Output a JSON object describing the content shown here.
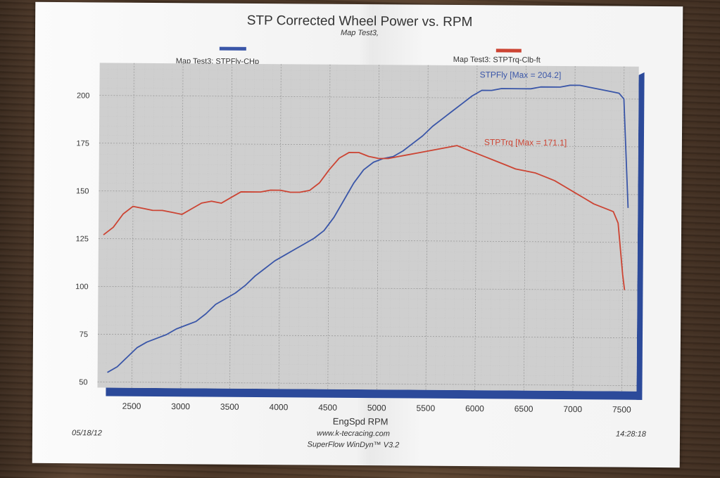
{
  "chart_data": {
    "type": "line",
    "title": "STP Corrected Wheel Power vs. RPM",
    "subtitle": "Map Test3,",
    "xlabel": "EngSpd RPM",
    "ylabel": "",
    "xlim": [
      2150,
      7650
    ],
    "ylim": [
      47,
      217
    ],
    "x_ticks": [
      2500,
      3000,
      3500,
      4000,
      4500,
      5000,
      5500,
      6000,
      6500,
      7000,
      7500
    ],
    "y_ticks": [
      50,
      75,
      100,
      125,
      150,
      175,
      200
    ],
    "grid": true,
    "legend_placement": "top",
    "series": [
      {
        "name": "Map Test3: STPFly-CHp",
        "color": "#3a56a8",
        "annotation": "STPFly [Max = 204.2]",
        "x": [
          2250,
          2350,
          2450,
          2550,
          2650,
          2750,
          2850,
          2950,
          3050,
          3150,
          3250,
          3350,
          3450,
          3550,
          3650,
          3750,
          3850,
          3950,
          4050,
          4150,
          4250,
          4350,
          4450,
          4550,
          4650,
          4750,
          4850,
          4950,
          5050,
          5150,
          5250,
          5350,
          5450,
          5550,
          5650,
          5750,
          5850,
          5950,
          6050,
          6150,
          6250,
          6350,
          6450,
          6550,
          6650,
          6750,
          6850,
          6950,
          7050,
          7150,
          7250,
          7350,
          7450,
          7500,
          7550
        ],
        "y": [
          55,
          58,
          63,
          68,
          71,
          73,
          75,
          78,
          80,
          82,
          86,
          91,
          94,
          97,
          101,
          106,
          110,
          114,
          117,
          120,
          123,
          126,
          130,
          137,
          146,
          155,
          162,
          166,
          168,
          169,
          172,
          176,
          180,
          185,
          189,
          193,
          197,
          201,
          204,
          204,
          205,
          205,
          205,
          205,
          206,
          206,
          206,
          207,
          207,
          206,
          205,
          204,
          203,
          200,
          143
        ]
      },
      {
        "name": "Map Test3: STPTrq-Clb-ft",
        "color": "#cc4433",
        "annotation": "STPTrq [Max = 171.1]",
        "x": [
          2200,
          2300,
          2400,
          2500,
          2600,
          2700,
          2800,
          2900,
          3000,
          3100,
          3200,
          3300,
          3400,
          3500,
          3600,
          3700,
          3800,
          3900,
          4000,
          4100,
          4200,
          4300,
          4400,
          4500,
          4600,
          4700,
          4800,
          4900,
          5000,
          5100,
          5200,
          5300,
          5400,
          5500,
          5600,
          5700,
          5800,
          5900,
          6000,
          6100,
          6200,
          6300,
          6400,
          6500,
          6600,
          6700,
          6800,
          6900,
          7000,
          7100,
          7200,
          7300,
          7400,
          7450,
          7500,
          7520
        ],
        "y": [
          127,
          131,
          138,
          142,
          141,
          140,
          140,
          139,
          138,
          141,
          144,
          145,
          144,
          147,
          150,
          150,
          150,
          151,
          151,
          150,
          150,
          151,
          155,
          162,
          168,
          171,
          171,
          169,
          168,
          168,
          169,
          170,
          171,
          172,
          173,
          174,
          175,
          173,
          171,
          169,
          167,
          165,
          163,
          162,
          161,
          159,
          157,
          154,
          151,
          148,
          145,
          143,
          141,
          135,
          108,
          100
        ]
      }
    ],
    "footer": {
      "date": "05/18/12",
      "time": "14:28:18",
      "website": "www.k-tecracing.com",
      "software": "SuperFlow WinDyn™ V3.2"
    }
  }
}
